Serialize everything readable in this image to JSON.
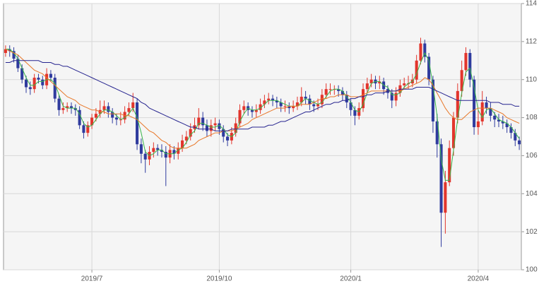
{
  "chart_data": {
    "type": "candlestick",
    "categories": [
      null,
      null,
      null,
      null,
      null,
      null,
      null,
      null,
      null,
      null,
      null,
      null,
      null,
      null,
      null,
      null,
      null,
      null,
      null,
      null,
      null,
      "2019/7",
      null,
      null,
      null,
      null,
      null,
      null,
      null,
      null,
      null,
      null,
      null,
      null,
      null,
      null,
      null,
      null,
      null,
      null,
      null,
      null,
      null,
      null,
      null,
      null,
      null,
      null,
      null,
      null,
      null,
      null,
      "2019/10",
      null,
      null,
      null,
      null,
      null,
      null,
      null,
      null,
      null,
      null,
      null,
      null,
      null,
      null,
      null,
      null,
      null,
      null,
      null,
      null,
      null,
      null,
      null,
      null,
      null,
      null,
      null,
      null,
      null,
      null,
      null,
      "2020/1",
      null,
      null,
      null,
      null,
      null,
      null,
      null,
      null,
      null,
      null,
      null,
      null,
      null,
      null,
      null,
      null,
      null,
      null,
      null,
      null,
      null,
      null,
      null,
      null,
      null,
      null,
      null,
      null,
      null,
      null,
      "2020/4",
      null,
      null,
      null,
      null,
      null,
      null,
      null,
      null,
      null,
      null
    ],
    "ohlc": [
      [
        111.4,
        111.8,
        111.2,
        111.6
      ],
      [
        111.6,
        111.8,
        111.2,
        111.5
      ],
      [
        111.5,
        111.7,
        110.9,
        111.1
      ],
      [
        111.1,
        111.3,
        110.4,
        110.6
      ],
      [
        110.6,
        110.8,
        109.8,
        110.0
      ],
      [
        110.0,
        110.2,
        109.3,
        109.6
      ],
      [
        109.6,
        109.9,
        109.2,
        109.5
      ],
      [
        109.5,
        110.3,
        109.3,
        110.1
      ],
      [
        110.1,
        110.3,
        109.8,
        110.0
      ],
      [
        110.0,
        110.2,
        109.5,
        109.7
      ],
      [
        109.7,
        110.6,
        109.5,
        110.3
      ],
      [
        110.3,
        110.5,
        109.9,
        110.1
      ],
      [
        110.1,
        110.3,
        108.8,
        109.0
      ],
      [
        109.0,
        109.2,
        108.1,
        108.4
      ],
      [
        108.4,
        108.8,
        108.2,
        108.5
      ],
      [
        108.5,
        108.8,
        108.3,
        108.6
      ],
      [
        108.6,
        108.8,
        108.2,
        108.5
      ],
      [
        108.5,
        108.7,
        108.1,
        108.4
      ],
      [
        108.4,
        108.6,
        107.4,
        107.6
      ],
      [
        107.6,
        107.8,
        106.9,
        107.2
      ],
      [
        107.2,
        107.8,
        107.0,
        107.6
      ],
      [
        107.6,
        108.2,
        107.4,
        108.0
      ],
      [
        108.0,
        108.5,
        107.8,
        108.2
      ],
      [
        108.2,
        108.9,
        108.0,
        108.4
      ],
      [
        108.4,
        108.9,
        108.2,
        108.6
      ],
      [
        108.6,
        108.8,
        108.0,
        108.3
      ],
      [
        108.3,
        108.5,
        107.7,
        108.0
      ],
      [
        108.0,
        108.2,
        107.6,
        107.9
      ],
      [
        107.9,
        108.3,
        107.6,
        107.9
      ],
      [
        107.9,
        108.6,
        107.7,
        108.3
      ],
      [
        108.3,
        108.8,
        108.1,
        108.5
      ],
      [
        108.5,
        109.3,
        108.3,
        108.8
      ],
      [
        108.8,
        109.0,
        106.3,
        106.6
      ],
      [
        106.6,
        106.9,
        105.6,
        106.1
      ],
      [
        106.1,
        106.3,
        105.1,
        105.8
      ],
      [
        105.8,
        106.5,
        105.5,
        106.2
      ],
      [
        106.2,
        106.7,
        105.9,
        106.4
      ],
      [
        106.4,
        106.6,
        106.0,
        106.3
      ],
      [
        106.3,
        106.6,
        105.9,
        106.2
      ],
      [
        106.2,
        106.5,
        104.4,
        105.9
      ],
      [
        105.9,
        106.6,
        105.6,
        106.3
      ],
      [
        106.3,
        106.5,
        105.8,
        106.1
      ],
      [
        106.1,
        106.7,
        105.8,
        106.4
      ],
      [
        106.4,
        107.1,
        106.2,
        106.8
      ],
      [
        106.8,
        107.3,
        106.6,
        107.0
      ],
      [
        107.0,
        107.7,
        106.8,
        107.4
      ],
      [
        107.4,
        108.0,
        107.2,
        107.6
      ],
      [
        107.6,
        108.5,
        107.4,
        108.0
      ],
      [
        108.0,
        108.3,
        107.3,
        107.6
      ],
      [
        107.6,
        107.9,
        107.0,
        107.3
      ],
      [
        107.3,
        107.9,
        107.0,
        107.6
      ],
      [
        107.6,
        108.0,
        107.3,
        107.7
      ],
      [
        107.7,
        107.9,
        107.1,
        107.4
      ],
      [
        107.4,
        107.6,
        106.7,
        107.0
      ],
      [
        107.0,
        107.2,
        106.5,
        106.8
      ],
      [
        106.8,
        107.5,
        106.6,
        107.2
      ],
      [
        107.2,
        108.0,
        107.0,
        107.7
      ],
      [
        107.7,
        108.7,
        107.5,
        108.4
      ],
      [
        108.4,
        108.9,
        108.2,
        108.6
      ],
      [
        108.6,
        108.8,
        108.1,
        108.4
      ],
      [
        108.4,
        108.6,
        108.0,
        108.3
      ],
      [
        108.3,
        108.7,
        108.0,
        108.4
      ],
      [
        108.4,
        109.0,
        108.2,
        108.7
      ],
      [
        108.7,
        109.2,
        108.5,
        108.9
      ],
      [
        108.9,
        109.3,
        108.7,
        109.0
      ],
      [
        109.0,
        109.2,
        108.6,
        108.9
      ],
      [
        108.9,
        109.1,
        108.5,
        108.8
      ],
      [
        108.8,
        109.0,
        108.3,
        108.6
      ],
      [
        108.6,
        108.9,
        108.3,
        108.6
      ],
      [
        108.6,
        108.8,
        108.2,
        108.5
      ],
      [
        108.5,
        108.9,
        108.3,
        108.6
      ],
      [
        108.6,
        109.1,
        108.4,
        108.8
      ],
      [
        108.8,
        109.6,
        108.6,
        109.1
      ],
      [
        109.1,
        109.4,
        108.7,
        109.0
      ],
      [
        109.0,
        109.2,
        108.4,
        108.7
      ],
      [
        108.7,
        108.9,
        108.3,
        108.6
      ],
      [
        108.6,
        109.0,
        108.4,
        108.7
      ],
      [
        108.7,
        109.5,
        108.5,
        109.2
      ],
      [
        109.2,
        109.8,
        109.0,
        109.5
      ],
      [
        109.5,
        109.8,
        109.2,
        109.5
      ],
      [
        109.5,
        109.7,
        109.2,
        109.5
      ],
      [
        109.5,
        109.7,
        109.1,
        109.4
      ],
      [
        109.4,
        109.6,
        108.9,
        109.2
      ],
      [
        109.2,
        109.4,
        108.5,
        108.8
      ],
      [
        108.8,
        109.0,
        108.1,
        108.4
      ],
      [
        108.4,
        108.6,
        107.6,
        108.1
      ],
      [
        108.1,
        108.8,
        107.9,
        108.5
      ],
      [
        108.5,
        109.8,
        108.3,
        109.5
      ],
      [
        109.5,
        110.1,
        109.3,
        109.8
      ],
      [
        109.8,
        110.3,
        109.6,
        110.0
      ],
      [
        110.0,
        110.2,
        109.5,
        109.8
      ],
      [
        109.8,
        110.2,
        109.5,
        109.9
      ],
      [
        109.9,
        110.1,
        109.2,
        109.5
      ],
      [
        109.5,
        109.7,
        109.0,
        109.3
      ],
      [
        109.3,
        109.5,
        108.5,
        108.9
      ],
      [
        108.9,
        109.6,
        108.6,
        109.3
      ],
      [
        109.3,
        110.0,
        109.1,
        109.7
      ],
      [
        109.7,
        110.1,
        109.5,
        109.8
      ],
      [
        109.8,
        110.2,
        109.5,
        109.8
      ],
      [
        109.8,
        110.3,
        109.6,
        110.0
      ],
      [
        110.0,
        111.3,
        109.8,
        111.0
      ],
      [
        111.0,
        112.2,
        110.8,
        111.9
      ],
      [
        111.9,
        112.1,
        110.9,
        111.2
      ],
      [
        111.2,
        111.4,
        109.7,
        110.0
      ],
      [
        110.0,
        110.2,
        107.2,
        107.8
      ],
      [
        107.8,
        108.2,
        105.9,
        106.6
      ],
      [
        106.6,
        106.9,
        101.2,
        103.0
      ],
      [
        103.0,
        105.2,
        101.9,
        104.6
      ],
      [
        104.6,
        106.8,
        104.4,
        106.4
      ],
      [
        106.4,
        108.3,
        106.0,
        108.0
      ],
      [
        108.0,
        109.8,
        107.7,
        109.4
      ],
      [
        109.4,
        111.0,
        109.1,
        110.5
      ],
      [
        110.5,
        111.7,
        110.2,
        111.4
      ],
      [
        111.4,
        111.6,
        109.6,
        110.0
      ],
      [
        110.0,
        110.2,
        107.1,
        107.5
      ],
      [
        107.5,
        108.4,
        107.1,
        107.8
      ],
      [
        107.8,
        109.4,
        107.6,
        108.8
      ],
      [
        108.8,
        109.1,
        108.2,
        108.5
      ],
      [
        108.5,
        108.8,
        107.8,
        108.1
      ],
      [
        108.1,
        108.3,
        107.5,
        107.9
      ],
      [
        107.9,
        108.2,
        107.5,
        107.8
      ],
      [
        107.8,
        108.1,
        107.4,
        107.7
      ],
      [
        107.7,
        107.9,
        107.2,
        107.5
      ],
      [
        107.5,
        107.7,
        106.9,
        107.2
      ],
      [
        107.2,
        107.4,
        106.5,
        106.8
      ],
      [
        106.8,
        107.0,
        106.3,
        106.6
      ]
    ],
    "up_color": "#e2352c",
    "down_color": "#2f3b9e",
    "series": [
      {
        "color": "#39b54a",
        "values": [
          111.6,
          111.6,
          111.4,
          111.1,
          110.6,
          110.1,
          109.7,
          109.7,
          109.9,
          109.9,
          110.0,
          110.0,
          109.8,
          109.2,
          108.6,
          108.5,
          108.5,
          108.5,
          108.2,
          107.7,
          107.5,
          107.6,
          107.9,
          108.2,
          108.4,
          108.4,
          108.3,
          108.1,
          107.9,
          108.0,
          108.2,
          108.5,
          108.0,
          107.2,
          106.2,
          106.0,
          106.1,
          106.3,
          106.3,
          106.1,
          106.1,
          106.1,
          106.3,
          106.4,
          106.7,
          107.1,
          107.3,
          107.7,
          107.7,
          107.6,
          107.5,
          107.5,
          107.6,
          107.4,
          107.1,
          107.0,
          107.2,
          107.8,
          108.2,
          108.5,
          108.4,
          108.4,
          108.5,
          108.7,
          108.9,
          108.9,
          108.9,
          108.8,
          108.7,
          108.6,
          108.6,
          108.6,
          108.8,
          109.0,
          108.9,
          108.8,
          108.7,
          108.8,
          109.1,
          109.4,
          109.5,
          109.5,
          109.4,
          109.1,
          108.8,
          108.4,
          108.3,
          108.7,
          109.3,
          109.8,
          109.9,
          109.9,
          109.7,
          109.6,
          109.2,
          109.2,
          109.3,
          109.6,
          109.8,
          109.9,
          110.3,
          110.9,
          111.4,
          111.0,
          109.7,
          108.1,
          105.8,
          104.7,
          104.7,
          106.3,
          107.9,
          109.3,
          110.4,
          110.6,
          109.6,
          108.4,
          108.0,
          108.4,
          108.5,
          108.2,
          107.9,
          107.8,
          107.7,
          107.5,
          107.2,
          106.9
        ]
      },
      {
        "color": "#e8782a",
        "values": [
          111.6,
          111.5,
          111.4,
          111.3,
          111.1,
          110.9,
          110.7,
          110.5,
          110.4,
          110.3,
          110.1,
          109.9,
          109.7,
          109.5,
          109.3,
          109.1,
          109.0,
          108.9,
          108.7,
          108.6,
          108.5,
          108.4,
          108.4,
          108.3,
          108.3,
          108.2,
          108.2,
          108.2,
          108.2,
          108.1,
          108.1,
          108.0,
          107.9,
          107.7,
          107.5,
          107.3,
          107.2,
          107.0,
          106.8,
          106.7,
          106.5,
          106.4,
          106.4,
          106.4,
          106.4,
          106.5,
          106.6,
          106.8,
          106.9,
          107.0,
          107.1,
          107.2,
          107.2,
          107.3,
          107.3,
          107.3,
          107.4,
          107.5,
          107.6,
          107.7,
          107.9,
          108.0,
          108.1,
          108.2,
          108.3,
          108.4,
          108.5,
          108.5,
          108.5,
          108.6,
          108.6,
          108.6,
          108.7,
          108.7,
          108.7,
          108.8,
          108.9,
          109.0,
          109.0,
          109.1,
          109.1,
          109.2,
          109.2,
          109.2,
          109.1,
          109.1,
          109.1,
          109.2,
          109.3,
          109.4,
          109.4,
          109.4,
          109.4,
          109.4,
          109.4,
          109.4,
          109.4,
          109.5,
          109.6,
          109.7,
          109.8,
          109.9,
          110.1,
          110.0,
          109.7,
          109.3,
          108.9,
          108.5,
          108.2,
          108.0,
          107.9,
          107.9,
          108.1,
          108.3,
          108.4,
          108.5,
          108.5,
          108.5,
          108.5,
          108.4,
          108.3,
          108.2,
          108.0,
          107.9,
          107.8,
          107.7
        ]
      },
      {
        "color": "#26248f",
        "values": [
          110.9,
          110.9,
          111.0,
          111.0,
          111.0,
          111.0,
          111.0,
          111.0,
          111.0,
          110.9,
          110.9,
          110.9,
          110.8,
          110.8,
          110.7,
          110.7,
          110.6,
          110.5,
          110.4,
          110.3,
          110.2,
          110.1,
          110.0,
          109.9,
          109.8,
          109.7,
          109.6,
          109.5,
          109.4,
          109.3,
          109.2,
          109.1,
          109.0,
          108.8,
          108.7,
          108.5,
          108.4,
          108.3,
          108.2,
          108.1,
          108.0,
          107.9,
          107.8,
          107.7,
          107.6,
          107.5,
          107.5,
          107.4,
          107.4,
          107.4,
          107.4,
          107.3,
          107.3,
          107.3,
          107.3,
          107.4,
          107.4,
          107.4,
          107.4,
          107.4,
          107.5,
          107.5,
          107.5,
          107.5,
          107.6,
          107.6,
          107.7,
          107.8,
          107.8,
          107.9,
          108.0,
          108.1,
          108.2,
          108.3,
          108.3,
          108.4,
          108.5,
          108.6,
          108.7,
          108.7,
          108.8,
          108.8,
          108.9,
          108.9,
          109.0,
          109.0,
          109.1,
          109.1,
          109.2,
          109.2,
          109.3,
          109.3,
          109.3,
          109.4,
          109.4,
          109.4,
          109.5,
          109.5,
          109.5,
          109.5,
          109.6,
          109.6,
          109.6,
          109.6,
          109.5,
          109.4,
          109.3,
          109.2,
          109.1,
          109.0,
          108.9,
          108.9,
          108.9,
          108.9,
          108.9,
          108.9,
          108.9,
          108.9,
          108.8,
          108.8,
          108.8,
          108.7,
          108.7,
          108.7,
          108.6,
          108.6
        ]
      }
    ],
    "ylim": [
      100,
      114
    ],
    "yticks": [
      100,
      102,
      104,
      106,
      108,
      110,
      112,
      114
    ],
    "grid": true
  }
}
